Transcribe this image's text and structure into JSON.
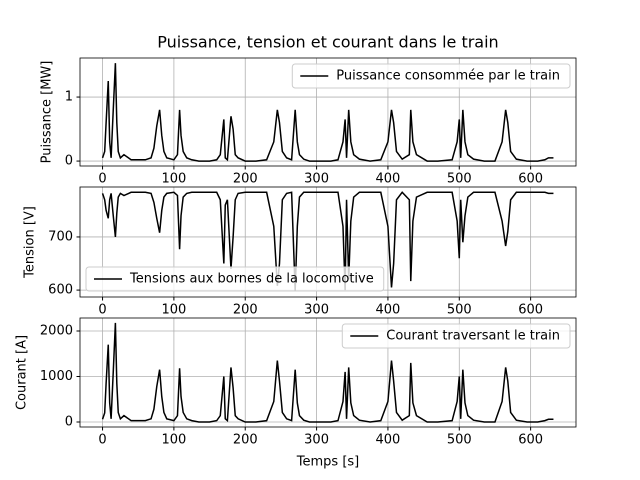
{
  "title": "Puissance, tension et courant dans le train",
  "chart_data": [
    {
      "type": "line",
      "ylabel": "Puissance [MW]",
      "legend": "upper right",
      "grid": true,
      "xlim": [
        -31.6,
        663.6
      ],
      "xticks": [
        0,
        100,
        200,
        300,
        400,
        500,
        600
      ],
      "ylim": [
        -0.077,
        1.61
      ],
      "yticks": [
        0,
        1
      ],
      "x": [
        0,
        3,
        5,
        8,
        10,
        12,
        15,
        18,
        20,
        22,
        25,
        30,
        40,
        50,
        60,
        68,
        72,
        76,
        80,
        83,
        86,
        90,
        100,
        105,
        108,
        110,
        113,
        118,
        125,
        135,
        150,
        160,
        165,
        170,
        172,
        175,
        180,
        183,
        186,
        190,
        200,
        215,
        230,
        240,
        245,
        248,
        252,
        258,
        265,
        270,
        273,
        276,
        282,
        290,
        305,
        320,
        330,
        337,
        340,
        342,
        345,
        348,
        352,
        360,
        375,
        390,
        400,
        405,
        408,
        412,
        420,
        430,
        432,
        435,
        440,
        455,
        470,
        490,
        497,
        500,
        502,
        505,
        508,
        512,
        520,
        535,
        550,
        560,
        565,
        568,
        572,
        580,
        595,
        610,
        620,
        625,
        632
      ],
      "series": [
        {
          "name": "Puissance consommée par le train",
          "color": "#000000",
          "values": [
            0.05,
            0.15,
            0.6,
            1.25,
            0.3,
            0.05,
            0.8,
            1.53,
            0.6,
            0.15,
            0.05,
            0.1,
            0.02,
            0.02,
            0.02,
            0.05,
            0.2,
            0.55,
            0.8,
            0.4,
            0.15,
            0.05,
            0.02,
            0.1,
            0.8,
            0.4,
            0.15,
            0.05,
            0.02,
            0,
            0,
            0.02,
            0.1,
            0.65,
            0.05,
            0.02,
            0.7,
            0.5,
            0.1,
            0.05,
            0,
            0,
            0.02,
            0.3,
            0.8,
            0.6,
            0.15,
            0.05,
            0.02,
            0.8,
            0.3,
            0.1,
            0.03,
            0,
            0,
            0,
            0.02,
            0.3,
            0.65,
            0.05,
            0.8,
            0.3,
            0.1,
            0.03,
            0,
            0.02,
            0.3,
            0.8,
            0.6,
            0.15,
            0.03,
            0.1,
            0.8,
            0.3,
            0.1,
            0,
            0,
            0.02,
            0.3,
            0.65,
            0.05,
            0.8,
            0.3,
            0.1,
            0.03,
            0,
            0,
            0.3,
            0.8,
            0.6,
            0.15,
            0.03,
            0,
            0,
            0.02,
            0.05,
            0.05
          ]
        }
      ]
    },
    {
      "type": "line",
      "ylabel": "Tension [V]",
      "legend": "lower left",
      "grid": true,
      "xlim": [
        -31.6,
        663.6
      ],
      "xticks": [
        0,
        100,
        200,
        300,
        400,
        500,
        600
      ],
      "ylim": [
        587,
        794
      ],
      "yticks": [
        600,
        700
      ],
      "x": [
        0,
        3,
        5,
        8,
        10,
        12,
        15,
        18,
        20,
        22,
        25,
        30,
        40,
        50,
        60,
        68,
        72,
        76,
        80,
        83,
        86,
        90,
        100,
        105,
        108,
        110,
        113,
        118,
        125,
        135,
        150,
        160,
        165,
        170,
        172,
        175,
        180,
        183,
        186,
        190,
        200,
        215,
        230,
        240,
        245,
        248,
        252,
        258,
        265,
        270,
        273,
        276,
        282,
        290,
        305,
        320,
        330,
        337,
        340,
        342,
        345,
        348,
        352,
        360,
        375,
        390,
        400,
        405,
        408,
        412,
        420,
        430,
        432,
        435,
        440,
        455,
        470,
        490,
        497,
        500,
        502,
        505,
        508,
        512,
        520,
        535,
        550,
        560,
        565,
        568,
        572,
        580,
        595,
        610,
        620,
        625,
        632
      ],
      "series": [
        {
          "name": "Tensions aux bornes de la locomotive",
          "color": "#000000",
          "values": [
            782,
            770,
            750,
            735,
            770,
            782,
            740,
            700,
            745,
            775,
            782,
            778,
            784,
            784,
            784,
            782,
            765,
            735,
            708,
            750,
            775,
            782,
            784,
            778,
            677,
            740,
            775,
            782,
            784,
            784,
            784,
            784,
            770,
            650,
            760,
            770,
            640,
            700,
            770,
            782,
            784,
            784,
            784,
            720,
            608,
            650,
            770,
            782,
            784,
            598,
            720,
            775,
            784,
            784,
            784,
            784,
            784,
            720,
            600,
            770,
            620,
            730,
            775,
            784,
            784,
            784,
            720,
            605,
            650,
            770,
            784,
            770,
            617,
            730,
            775,
            784,
            784,
            784,
            730,
            660,
            770,
            690,
            740,
            775,
            784,
            784,
            784,
            730,
            683,
            710,
            770,
            784,
            784,
            784,
            784,
            782,
            782
          ]
        }
      ]
    },
    {
      "type": "line",
      "ylabel": "Courant [A]",
      "xlabel": "Temps [s]",
      "legend": "upper right",
      "grid": true,
      "xlim": [
        -31.6,
        663.6
      ],
      "xticks": [
        0,
        100,
        200,
        300,
        400,
        500,
        600
      ],
      "ylim": [
        -110,
        2286
      ],
      "yticks": [
        0,
        1000,
        2000
      ],
      "x": [
        0,
        3,
        5,
        8,
        10,
        12,
        15,
        18,
        20,
        22,
        25,
        30,
        40,
        50,
        60,
        68,
        72,
        76,
        80,
        83,
        86,
        90,
        100,
        105,
        108,
        110,
        113,
        118,
        125,
        135,
        150,
        160,
        165,
        170,
        172,
        175,
        180,
        183,
        186,
        190,
        200,
        215,
        230,
        240,
        245,
        248,
        252,
        258,
        265,
        270,
        273,
        276,
        282,
        290,
        305,
        320,
        330,
        337,
        340,
        342,
        345,
        348,
        352,
        360,
        375,
        390,
        400,
        405,
        408,
        412,
        420,
        430,
        432,
        435,
        440,
        455,
        470,
        490,
        497,
        500,
        502,
        505,
        508,
        512,
        520,
        535,
        550,
        560,
        565,
        568,
        572,
        580,
        595,
        610,
        620,
        625,
        632
      ],
      "series": [
        {
          "name": "Courant traversant le train",
          "color": "#000000",
          "values": [
            60,
            200,
            850,
            1700,
            420,
            70,
            1100,
            2178,
            850,
            210,
            70,
            140,
            30,
            30,
            30,
            70,
            280,
            780,
            1150,
            560,
            210,
            70,
            30,
            140,
            1180,
            560,
            210,
            70,
            30,
            0,
            0,
            30,
            140,
            1000,
            70,
            30,
            1200,
            750,
            140,
            70,
            0,
            0,
            30,
            450,
            1350,
            900,
            210,
            70,
            30,
            1150,
            420,
            140,
            40,
            0,
            0,
            0,
            30,
            450,
            1100,
            70,
            1200,
            420,
            140,
            40,
            0,
            30,
            450,
            1350,
            900,
            210,
            40,
            140,
            1300,
            420,
            140,
            0,
            0,
            30,
            450,
            1000,
            70,
            1150,
            420,
            140,
            40,
            0,
            0,
            450,
            1200,
            900,
            210,
            40,
            0,
            0,
            30,
            60,
            60
          ]
        }
      ]
    }
  ]
}
